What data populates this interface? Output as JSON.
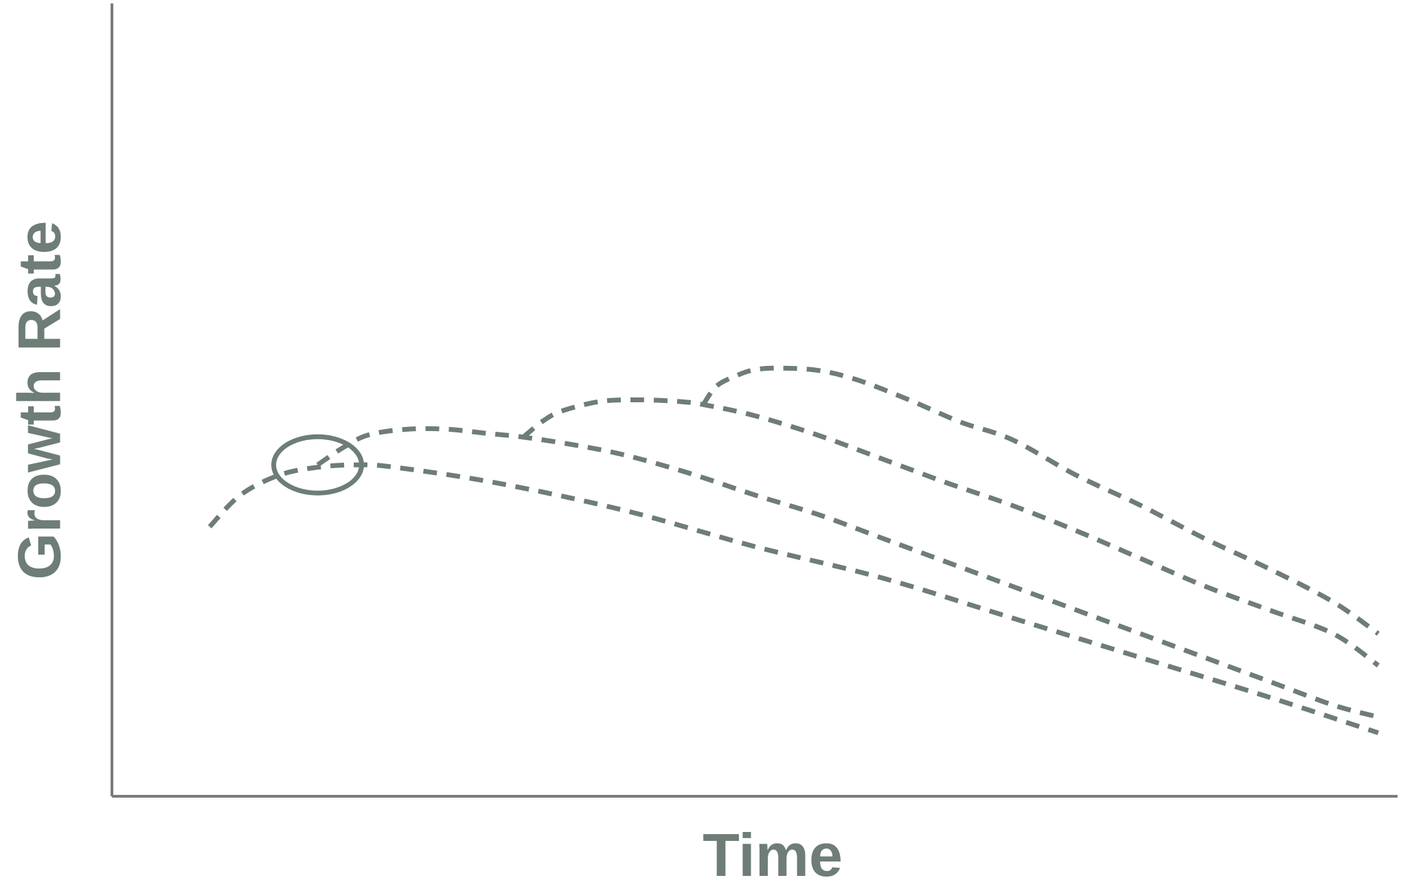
{
  "chart_data": {
    "type": "line",
    "title": "",
    "xlabel": "Time",
    "ylabel": "Growth Rate",
    "xlim": [
      0,
      100
    ],
    "ylim": [
      0,
      100
    ],
    "grid": false,
    "legend": "none",
    "x_tick_labels": [],
    "y_tick_labels": [],
    "series": [
      {
        "x": [
          7.6,
          10,
          13,
          16,
          19,
          22,
          30,
          40,
          50,
          60,
          70,
          80,
          90,
          98.5
        ],
        "y": [
          34,
          38,
          40.5,
          41.5,
          41.8,
          41.5,
          39.5,
          36,
          31.5,
          27.5,
          22.5,
          17.5,
          12.5,
          8
        ]
      },
      {
        "x": [
          16,
          18,
          20,
          23,
          26,
          29,
          32,
          36,
          40,
          45,
          50,
          55,
          60,
          65,
          70,
          75,
          80,
          85,
          90,
          95,
          98.5
        ],
        "y": [
          41.8,
          44,
          45.6,
          46.3,
          46.3,
          45.8,
          45.3,
          44.3,
          43,
          40.7,
          38,
          35.5,
          32.5,
          29.5,
          26.5,
          23.5,
          20.5,
          17.5,
          14.5,
          11.5,
          10
        ]
      },
      {
        "x": [
          32,
          33.5,
          35,
          38,
          41,
          44,
          46,
          50,
          55,
          60,
          65,
          70,
          75,
          80,
          85,
          90,
          95,
          98.5
        ],
        "y": [
          45.3,
          47.3,
          48.6,
          49.8,
          50,
          49.8,
          49.4,
          48,
          45.5,
          42.5,
          39.5,
          36.7,
          33.5,
          30,
          26.5,
          23.5,
          20.5,
          16.5
        ]
      },
      {
        "x": [
          46,
          47,
          48.5,
          50,
          52,
          55,
          58,
          62,
          66,
          70,
          75,
          80,
          85,
          90,
          95,
          98.5
        ],
        "y": [
          49.4,
          51.7,
          53,
          53.8,
          54,
          53.7,
          52.5,
          50,
          47.2,
          45,
          40.5,
          36.7,
          32.5,
          28.7,
          24.5,
          20.5
        ]
      }
    ],
    "annotations": [
      {
        "type": "ellipse",
        "target": "branch point",
        "x": 16,
        "y": 41.8
      }
    ],
    "colors": {
      "series": "#6e7d76",
      "axis": "#7a7a7a",
      "label": "#6e7d76"
    }
  }
}
